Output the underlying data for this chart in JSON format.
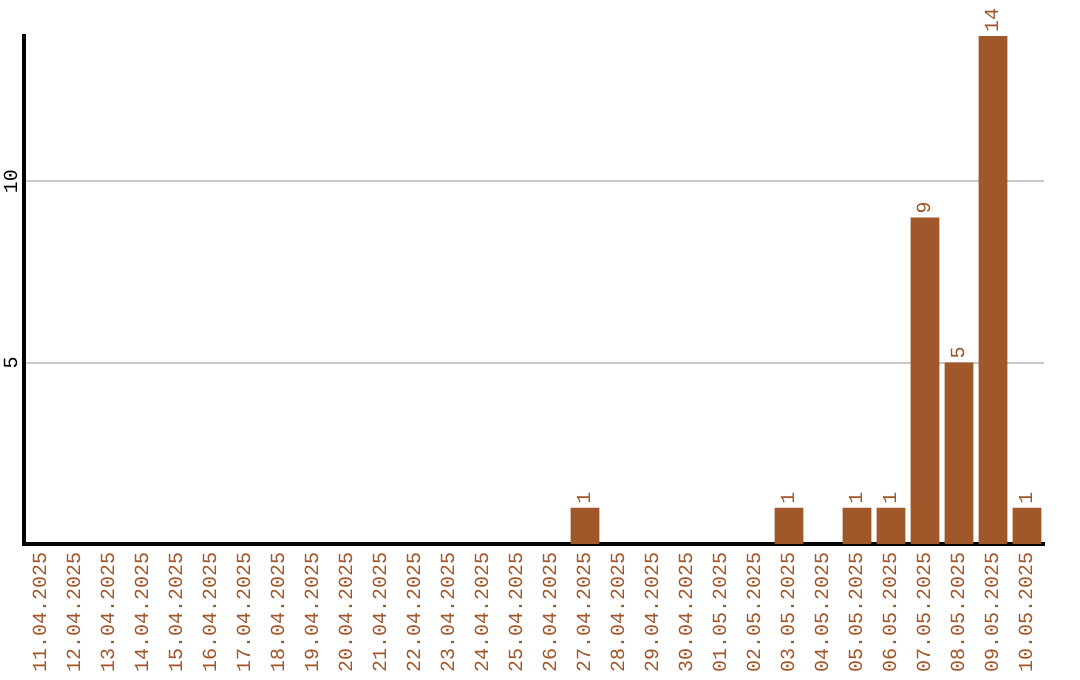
{
  "chart_data": {
    "type": "bar",
    "categories": [
      "11.04.2025",
      "12.04.2025",
      "13.04.2025",
      "14.04.2025",
      "15.04.2025",
      "16.04.2025",
      "17.04.2025",
      "18.04.2025",
      "19.04.2025",
      "20.04.2025",
      "21.04.2025",
      "22.04.2025",
      "23.04.2025",
      "24.04.2025",
      "25.04.2025",
      "26.04.2025",
      "27.04.2025",
      "28.04.2025",
      "29.04.2025",
      "30.04.2025",
      "01.05.2025",
      "02.05.2025",
      "03.05.2025",
      "04.05.2025",
      "05.05.2025",
      "06.05.2025",
      "07.05.2025",
      "08.05.2025",
      "09.05.2025",
      "10.05.2025"
    ],
    "values": [
      0,
      0,
      0,
      0,
      0,
      0,
      0,
      0,
      0,
      0,
      0,
      0,
      0,
      0,
      0,
      0,
      1,
      0,
      0,
      0,
      0,
      0,
      1,
      0,
      1,
      1,
      9,
      5,
      14,
      1
    ],
    "value_labels": [
      null,
      null,
      null,
      null,
      null,
      null,
      null,
      null,
      null,
      null,
      null,
      null,
      null,
      null,
      null,
      null,
      "1",
      null,
      null,
      null,
      null,
      null,
      "1",
      null,
      "1",
      "1",
      "9",
      "5",
      "14",
      "1"
    ],
    "color": "#a0572a",
    "ylim": [
      0,
      14
    ],
    "yticks": [
      5,
      10
    ],
    "grid": "y",
    "legend": false
  }
}
